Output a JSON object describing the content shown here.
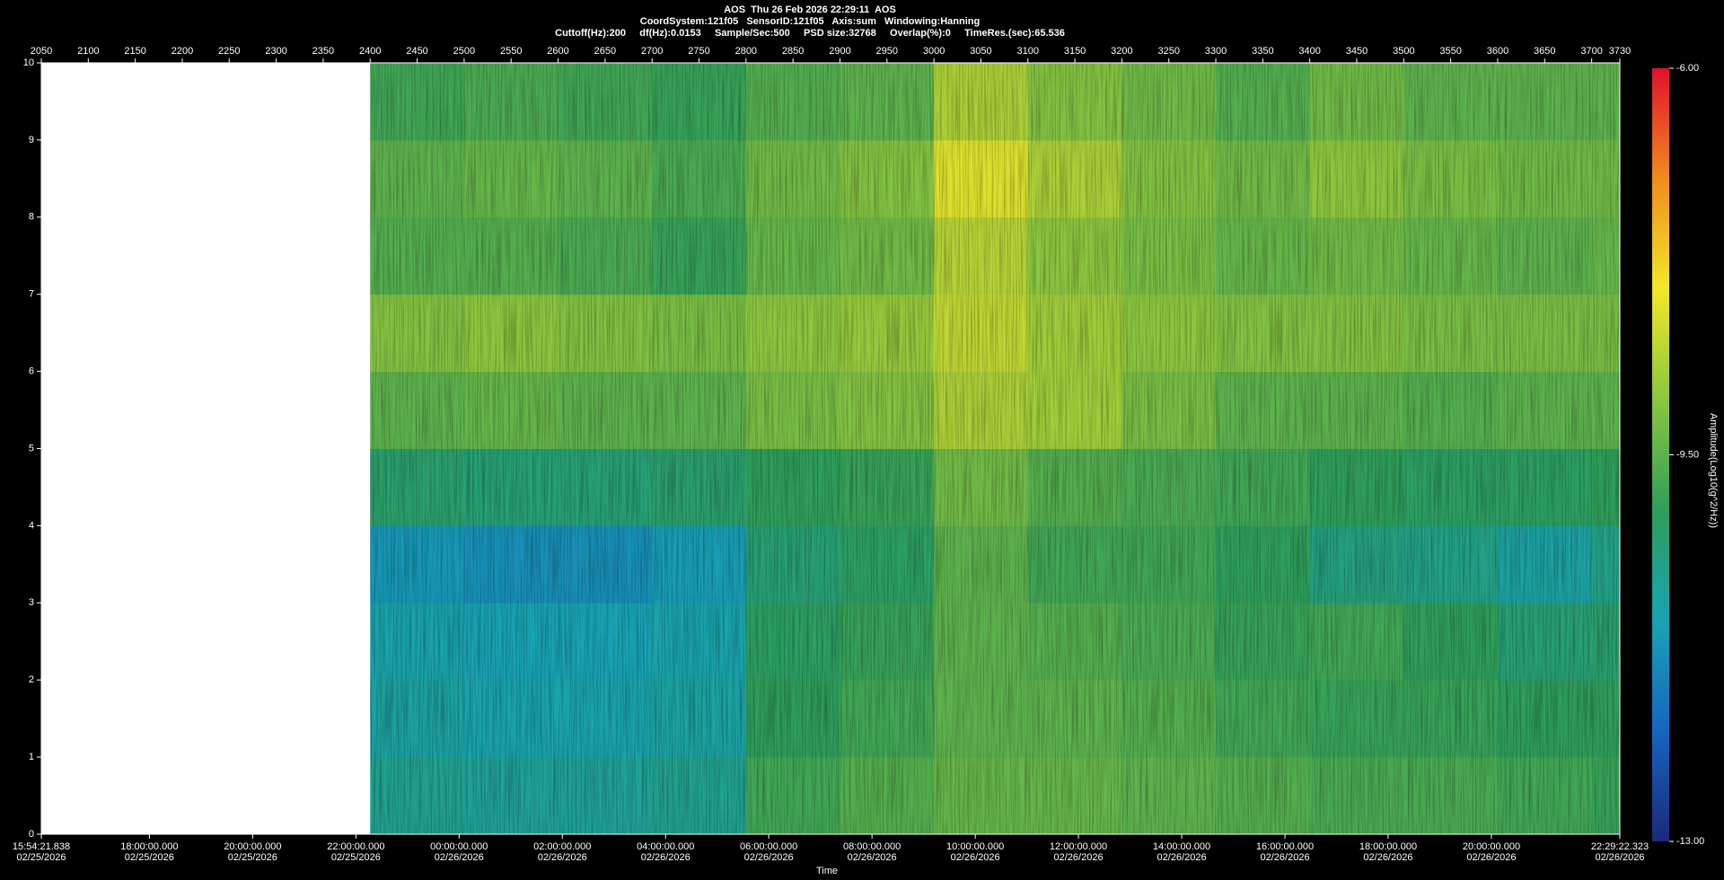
{
  "chart_data": {
    "type": "heatmap",
    "title": "AOS  Thu 26 Feb 2026 22:29:11  AOS",
    "subtitle": "CoordSystem:121f05   SensorID:121f05   Axis:sum   Windowing:Hanning",
    "parameters": "Cuttoff(Hz):200     df(Hz):0.0153     Sample/Sec:500     PSD size:32768     Overlap(%):0     TimeRes.(sec):65.536",
    "xlabel": "Time",
    "colorbar_label": "Amplitude(Log10(g^2/Hz))",
    "xlim": [
      2050,
      3730
    ],
    "xticks": [
      2050,
      2100,
      2150,
      2200,
      2250,
      2300,
      2350,
      2400,
      2450,
      2500,
      2550,
      2600,
      2650,
      2700,
      2750,
      2800,
      2850,
      2900,
      2950,
      3000,
      3050,
      3100,
      3150,
      3200,
      3250,
      3300,
      3350,
      3400,
      3450,
      3500,
      3550,
      3600,
      3650,
      3700,
      3730
    ],
    "time_ticks": [
      {
        "value": 2050,
        "label": "15:54:21.838",
        "date": "02/25/2026"
      },
      {
        "value": 2165.0,
        "label": "18:00:00.000",
        "date": "02/25/2026"
      },
      {
        "value": 2274.9,
        "label": "20:00:00.000",
        "date": "02/25/2026"
      },
      {
        "value": 2384.8,
        "label": "22:00:00.000",
        "date": "02/25/2026"
      },
      {
        "value": 2494.6,
        "label": "00:00:00.000",
        "date": "02/26/2026"
      },
      {
        "value": 2604.5,
        "label": "02:00:00.000",
        "date": "02/26/2026"
      },
      {
        "value": 2714.4,
        "label": "04:00:00.000",
        "date": "02/26/2026"
      },
      {
        "value": 2824.2,
        "label": "06:00:00.000",
        "date": "02/26/2026"
      },
      {
        "value": 2934.1,
        "label": "08:00:00.000",
        "date": "02/26/2026"
      },
      {
        "value": 3044.0,
        "label": "10:00:00.000",
        "date": "02/26/2026"
      },
      {
        "value": 3153.8,
        "label": "12:00:00.000",
        "date": "02/26/2026"
      },
      {
        "value": 3263.7,
        "label": "14:00:00.000",
        "date": "02/26/2026"
      },
      {
        "value": 3373.6,
        "label": "16:00:00.000",
        "date": "02/26/2026"
      },
      {
        "value": 3483.4,
        "label": "18:00:00.000",
        "date": "02/26/2026"
      },
      {
        "value": 3593.3,
        "label": "20:00:00.000",
        "date": "02/26/2026"
      },
      {
        "value": 3730,
        "label": "22:29:22.323",
        "date": "02/26/2026"
      }
    ],
    "ylim": [
      0,
      10
    ],
    "yticks": [
      0,
      1,
      2,
      3,
      4,
      5,
      6,
      7,
      8,
      9,
      10
    ],
    "xbins": [
      2400,
      2500,
      2600,
      2700,
      2800,
      2900,
      3000,
      3100,
      3200,
      3300,
      3400,
      3500,
      3600,
      3700,
      3730
    ],
    "ybins": [
      0,
      1,
      2,
      3,
      4,
      5,
      6,
      7,
      8,
      9,
      10
    ],
    "z": [
      [
        -10.6,
        -10.7,
        -10.7,
        -10.6,
        -9.8,
        -9.6,
        -9.4,
        -9.4,
        -9.5,
        -9.6,
        -9.7,
        -9.7,
        -9.8,
        -9.9
      ],
      [
        -10.8,
        -10.9,
        -10.9,
        -10.8,
        -10.0,
        -9.8,
        -9.5,
        -9.5,
        -9.6,
        -9.8,
        -9.9,
        -9.9,
        -10.0,
        -10.0
      ],
      [
        -10.9,
        -11.0,
        -11.0,
        -10.9,
        -10.1,
        -9.9,
        -9.5,
        -9.6,
        -9.7,
        -9.9,
        -9.8,
        -10.0,
        -10.3,
        -10.2
      ],
      [
        -11.2,
        -11.3,
        -11.3,
        -11.1,
        -10.3,
        -10.1,
        -9.5,
        -9.8,
        -9.8,
        -10.0,
        -10.4,
        -10.5,
        -10.8,
        -10.5
      ],
      [
        -10.2,
        -10.3,
        -10.3,
        -10.2,
        -10.0,
        -9.9,
        -9.3,
        -9.6,
        -9.7,
        -9.8,
        -10.0,
        -10.1,
        -10.1,
        -10.0
      ],
      [
        -9.5,
        -9.4,
        -9.5,
        -9.5,
        -9.2,
        -9.1,
        -8.7,
        -8.8,
        -9.2,
        -9.5,
        -9.5,
        -9.6,
        -9.5,
        -9.5
      ],
      [
        -9.1,
        -9.0,
        -9.1,
        -9.2,
        -9.0,
        -8.9,
        -8.5,
        -8.8,
        -9.0,
        -9.1,
        -9.1,
        -9.2,
        -9.2,
        -9.2
      ],
      [
        -9.6,
        -9.6,
        -9.7,
        -9.9,
        -9.4,
        -9.3,
        -8.6,
        -9.0,
        -9.2,
        -9.4,
        -9.3,
        -9.4,
        -9.5,
        -9.4
      ],
      [
        -9.5,
        -9.4,
        -9.5,
        -9.7,
        -9.3,
        -9.1,
        -8.2,
        -8.7,
        -9.1,
        -9.3,
        -9.0,
        -9.2,
        -9.3,
        -9.3
      ],
      [
        -9.8,
        -9.7,
        -9.8,
        -9.9,
        -9.6,
        -9.5,
        -8.7,
        -9.1,
        -9.3,
        -9.6,
        -9.3,
        -9.5,
        -9.5,
        -9.5
      ]
    ],
    "zlim": [
      -13,
      -6
    ],
    "zticks": [
      {
        "value": -13,
        "label": "-13.00"
      },
      {
        "value": -9.5,
        "label": "-9.50"
      },
      {
        "value": -6,
        "label": "-6.00"
      }
    ],
    "colorscale": [
      "#1b2a78",
      "#1565c0",
      "#18a3b3",
      "#2e9e5a",
      "#8cc63f",
      "#f2e829",
      "#f08c1e",
      "#e0102d"
    ]
  }
}
